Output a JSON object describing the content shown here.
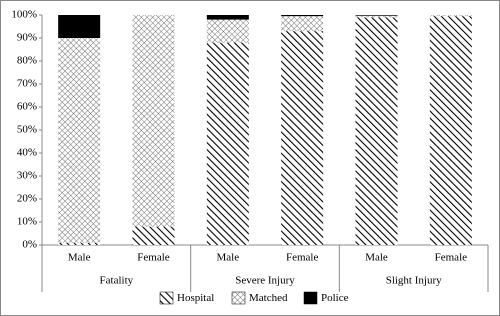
{
  "chart_data": {
    "type": "stacked-bar",
    "categories": [
      "Male",
      "Female",
      "Male",
      "Female",
      "Male",
      "Female"
    ],
    "groups": [
      "Fatality",
      "Severe Injury",
      "Slight Injury"
    ],
    "series": [
      {
        "name": "Hospital",
        "color": "#000000",
        "pattern": "diagonal",
        "values": [
          1,
          8,
          88,
          93,
          99,
          99.5
        ]
      },
      {
        "name": "Matched",
        "color": "#000000",
        "pattern": "crosshatch",
        "values": [
          89,
          92,
          10,
          6.5,
          0.7,
          0.5
        ]
      },
      {
        "name": "Police",
        "color": "#000000",
        "pattern": "solid",
        "values": [
          10,
          0,
          2,
          0.5,
          0.3,
          0
        ]
      }
    ],
    "ylim": [
      0,
      100
    ],
    "yticks": [
      {
        "value": 0,
        "label": "0%"
      },
      {
        "value": 10,
        "label": "10%"
      },
      {
        "value": 20,
        "label": "20%"
      },
      {
        "value": 30,
        "label": "30%"
      },
      {
        "value": 40,
        "label": "40%"
      },
      {
        "value": 50,
        "label": "50%"
      },
      {
        "value": 60,
        "label": "60%"
      },
      {
        "value": 70,
        "label": "70%"
      },
      {
        "value": 80,
        "label": "80%"
      },
      {
        "value": 90,
        "label": "90%"
      },
      {
        "value": 100,
        "label": "100%"
      }
    ],
    "legend": "bottom"
  }
}
